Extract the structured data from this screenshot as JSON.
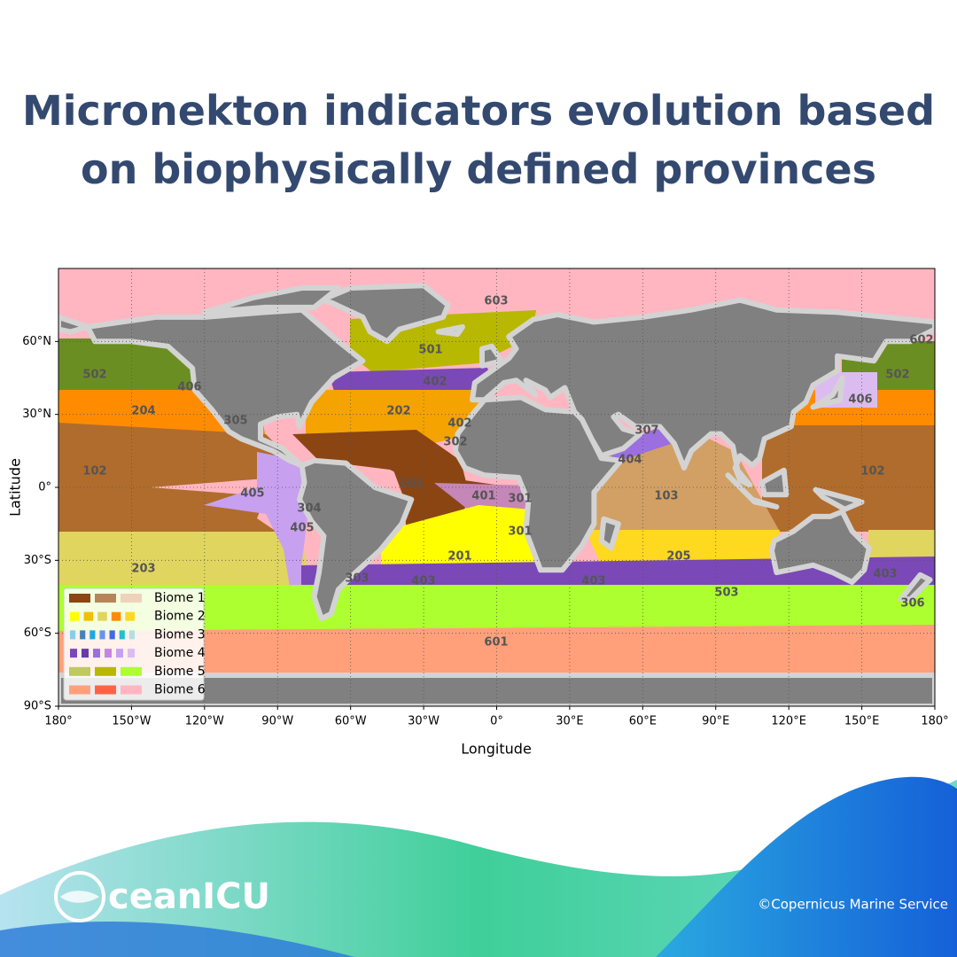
{
  "title": "Micronekton indicators evolution based on biophysically defined provinces",
  "map": {
    "xlabel": "Longitude",
    "ylabel": "Latitude",
    "xlim": [
      -180,
      180
    ],
    "ylim": [
      -90,
      90
    ],
    "xticks": [
      {
        "value": -180,
        "label": "180°"
      },
      {
        "value": -150,
        "label": "150°W"
      },
      {
        "value": -120,
        "label": "120°W"
      },
      {
        "value": -90,
        "label": "90°W"
      },
      {
        "value": -60,
        "label": "60°W"
      },
      {
        "value": -30,
        "label": "30°W"
      },
      {
        "value": 0,
        "label": "0°"
      },
      {
        "value": 30,
        "label": "30°E"
      },
      {
        "value": 60,
        "label": "60°E"
      },
      {
        "value": 90,
        "label": "90°E"
      },
      {
        "value": 120,
        "label": "120°E"
      },
      {
        "value": 150,
        "label": "150°E"
      },
      {
        "value": 180,
        "label": "180°"
      }
    ],
    "yticks": [
      {
        "value": 60,
        "label": "60°N"
      },
      {
        "value": 30,
        "label": "30°N"
      },
      {
        "value": 0,
        "label": "0°"
      },
      {
        "value": -30,
        "label": "30°S"
      },
      {
        "value": -60,
        "label": "60°S"
      },
      {
        "value": -90,
        "label": "90°S"
      }
    ],
    "provinces": [
      "603",
      "501",
      "602",
      "502",
      "502",
      "406",
      "402",
      "406",
      "204",
      "202",
      "305",
      "402",
      "307",
      "302",
      "404",
      "102",
      "102",
      "101",
      "401",
      "301",
      "103",
      "405",
      "304",
      "405",
      "301",
      "201",
      "205",
      "203",
      "303",
      "403",
      "403",
      "403",
      "503",
      "306",
      "601"
    ],
    "legend": [
      "Biome 1",
      "Biome 2",
      "Biome 3",
      "Biome 4",
      "Biome 5",
      "Biome 6"
    ]
  },
  "footer": {
    "logo": "ceanICU",
    "credit": "©Copernicus Marine Service"
  }
}
